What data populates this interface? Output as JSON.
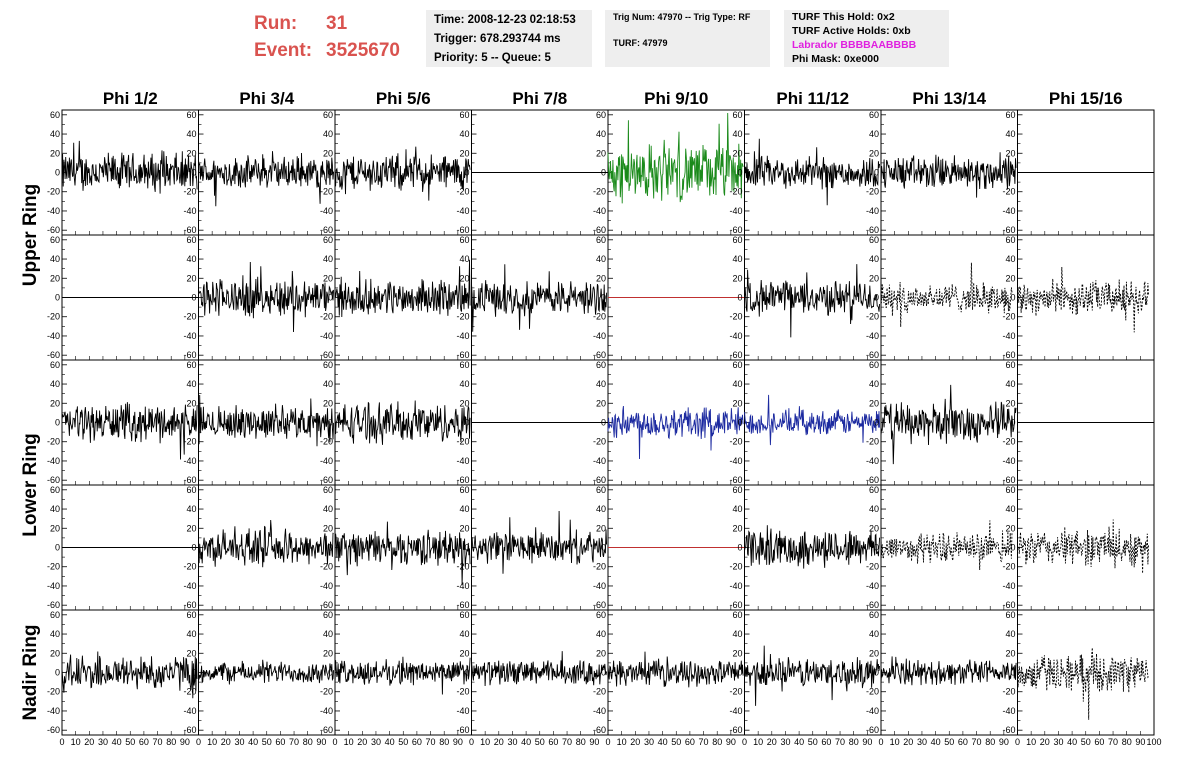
{
  "header": {
    "run_label": "Run:",
    "run_value": "31",
    "event_label": "Event:",
    "event_value": "3525670"
  },
  "info_time": {
    "time": "Time: 2008-12-23 02:18:53",
    "trigger": "Trigger: 678.293744 ms",
    "priority": "Priority: 5 -- Queue: 5"
  },
  "info_trig": {
    "trig": "Trig Num: 47970 -- Trig Type: RF",
    "turf": "TURF: 47979"
  },
  "info_turf": {
    "hold": "TURF This Hold: 0x2",
    "active": "TURF Active Holds: 0xb",
    "labrador": "Labrador BBBBAABBBB",
    "phimask": "Phi Mask: 0xe000",
    "labrador_color": "#e020e0"
  },
  "chart_data": {
    "type": "line",
    "columns": [
      "Phi 1/2",
      "Phi 3/4",
      "Phi 5/6",
      "Phi 7/8",
      "Phi 9/10",
      "Phi 11/12",
      "Phi 13/14",
      "Phi 15/16"
    ],
    "rows": [
      "Upper Ring",
      "Lower Ring",
      "Nadir Ring"
    ],
    "sub_rows": 5,
    "ylim": [
      -65,
      65
    ],
    "yticks": [
      -60,
      -40,
      -20,
      0,
      20,
      40,
      60
    ],
    "xlim": [
      0,
      100
    ],
    "xticks": [
      0,
      10,
      20,
      30,
      40,
      50,
      60,
      70,
      80,
      90,
      100
    ],
    "colors": {
      "black": "#000000",
      "green": "#1a8a1a",
      "blue": "#1c2aa0",
      "red": "#c03030"
    },
    "panels": [
      [
        "n:16",
        "n:13",
        "n:15",
        "f:black",
        "n:23:green",
        "n:13",
        "n:14",
        "f:black"
      ],
      [
        "f:black",
        "n:16",
        "n:14",
        "n:14",
        "f:red",
        "n:14",
        "d:12",
        "d:14"
      ],
      [
        "n:15",
        "n:13",
        "n:16",
        "f:black",
        "n:13:blue",
        "n:10:blue",
        "n:16",
        "f:black"
      ],
      [
        "f:black",
        "n:14",
        "n:14",
        "n:13",
        "f:red",
        "n:15",
        "d:12",
        "d:15"
      ],
      [
        "n:14",
        "n:9",
        "n:10",
        "n:10",
        "n:10",
        "n:12",
        "n:10",
        "d:15"
      ]
    ]
  }
}
